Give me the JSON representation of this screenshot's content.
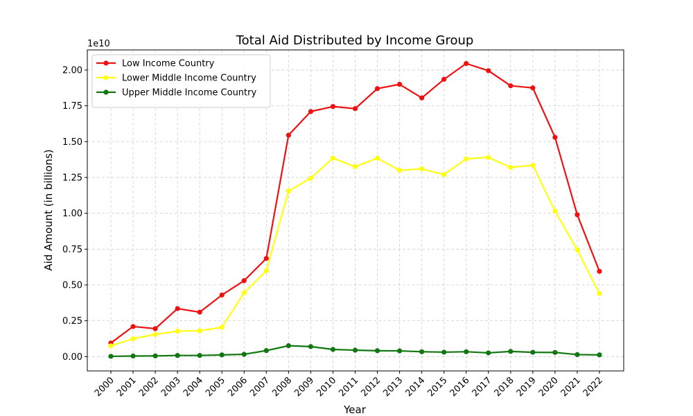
{
  "chart_data": {
    "type": "line",
    "title": "Total Aid Distributed by Income Group",
    "xlabel": "Year",
    "ylabel": "Aid Amount (in billions)",
    "y_exponent_label": "1e10",
    "categories": [
      "2000",
      "2001",
      "2002",
      "2003",
      "2004",
      "2005",
      "2006",
      "2007",
      "2008",
      "2009",
      "2010",
      "2011",
      "2012",
      "2013",
      "2014",
      "2015",
      "2016",
      "2017",
      "2018",
      "2019",
      "2020",
      "2021",
      "2022"
    ],
    "ylim": [
      -0.1,
      2.14
    ],
    "yticks": [
      0.0,
      0.25,
      0.5,
      0.75,
      1.0,
      1.25,
      1.5,
      1.75,
      2.0
    ],
    "ytick_labels": [
      "0.00",
      "0.25",
      "0.50",
      "0.75",
      "1.00",
      "1.25",
      "1.50",
      "1.75",
      "2.00"
    ],
    "grid": true,
    "legend_position": "top-left",
    "series": [
      {
        "name": "Low Income Country",
        "color": "#ee1111",
        "values": [
          0.095,
          0.21,
          0.195,
          0.335,
          0.31,
          0.43,
          0.53,
          0.685,
          1.545,
          1.71,
          1.745,
          1.73,
          1.87,
          1.9,
          1.805,
          1.935,
          2.045,
          1.995,
          1.89,
          1.875,
          1.53,
          0.99,
          0.595
        ]
      },
      {
        "name": "Lower Middle Income Country",
        "color": "#ffff11",
        "values": [
          0.075,
          0.125,
          0.155,
          0.178,
          0.18,
          0.205,
          0.445,
          0.6,
          1.155,
          1.245,
          1.385,
          1.325,
          1.385,
          1.3,
          1.31,
          1.27,
          1.38,
          1.39,
          1.32,
          1.335,
          1.015,
          0.745,
          0.44
        ]
      },
      {
        "name": "Upper Middle Income Country",
        "color": "#117711",
        "values": [
          0.002,
          0.004,
          0.005,
          0.008,
          0.008,
          0.012,
          0.016,
          0.042,
          0.076,
          0.07,
          0.05,
          0.045,
          0.041,
          0.04,
          0.034,
          0.031,
          0.034,
          0.026,
          0.036,
          0.03,
          0.029,
          0.014,
          0.012
        ]
      }
    ]
  }
}
